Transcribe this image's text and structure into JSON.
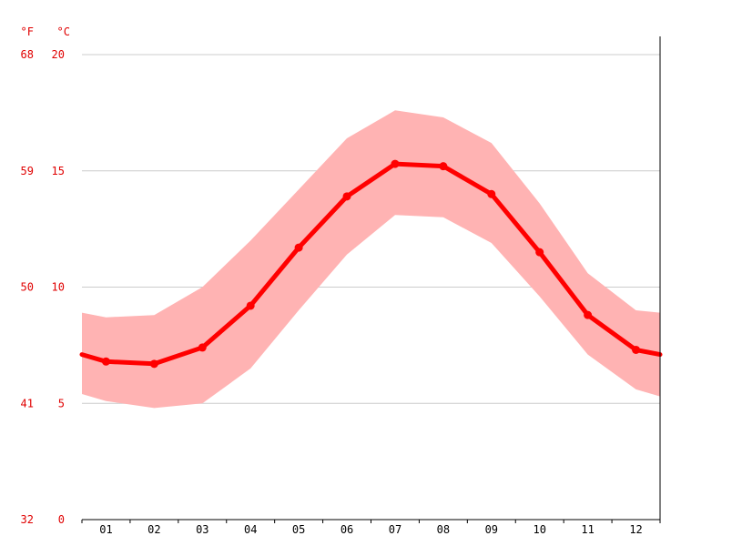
{
  "chart_data": {
    "type": "line",
    "categories": [
      "01",
      "02",
      "03",
      "04",
      "05",
      "06",
      "07",
      "08",
      "09",
      "10",
      "11",
      "12"
    ],
    "series": [
      {
        "name": "",
        "values": [
          6.8,
          6.7,
          7.4,
          9.2,
          11.7,
          13.9,
          15.3,
          15.2,
          14.0,
          11.5,
          8.8,
          7.3
        ]
      }
    ],
    "band": {
      "low": [
        5.1,
        4.8,
        5.0,
        6.5,
        9.0,
        11.4,
        13.1,
        13.0,
        11.9,
        9.6,
        7.1,
        5.6
      ],
      "high": [
        8.7,
        8.8,
        10.0,
        12.0,
        14.2,
        16.4,
        17.6,
        17.3,
        16.2,
        13.6,
        10.6,
        9.0
      ]
    },
    "edge": {
      "start": [
        7.1,
        5.4,
        8.9
      ],
      "end": [
        7.1,
        5.3,
        8.9
      ]
    },
    "y_ticks_c": [
      0,
      5,
      10,
      15,
      20
    ],
    "y_ticks_f": [
      32,
      41,
      50,
      59,
      68
    ],
    "unit_f": "°F",
    "unit_c": "°C",
    "ylim": [
      0,
      20
    ],
    "grid": true,
    "colors": {
      "line": "#ff0000",
      "band": "#ffb3b3",
      "grid": "#cccccc",
      "axis": "#000000",
      "ytick": "#e00000"
    }
  }
}
